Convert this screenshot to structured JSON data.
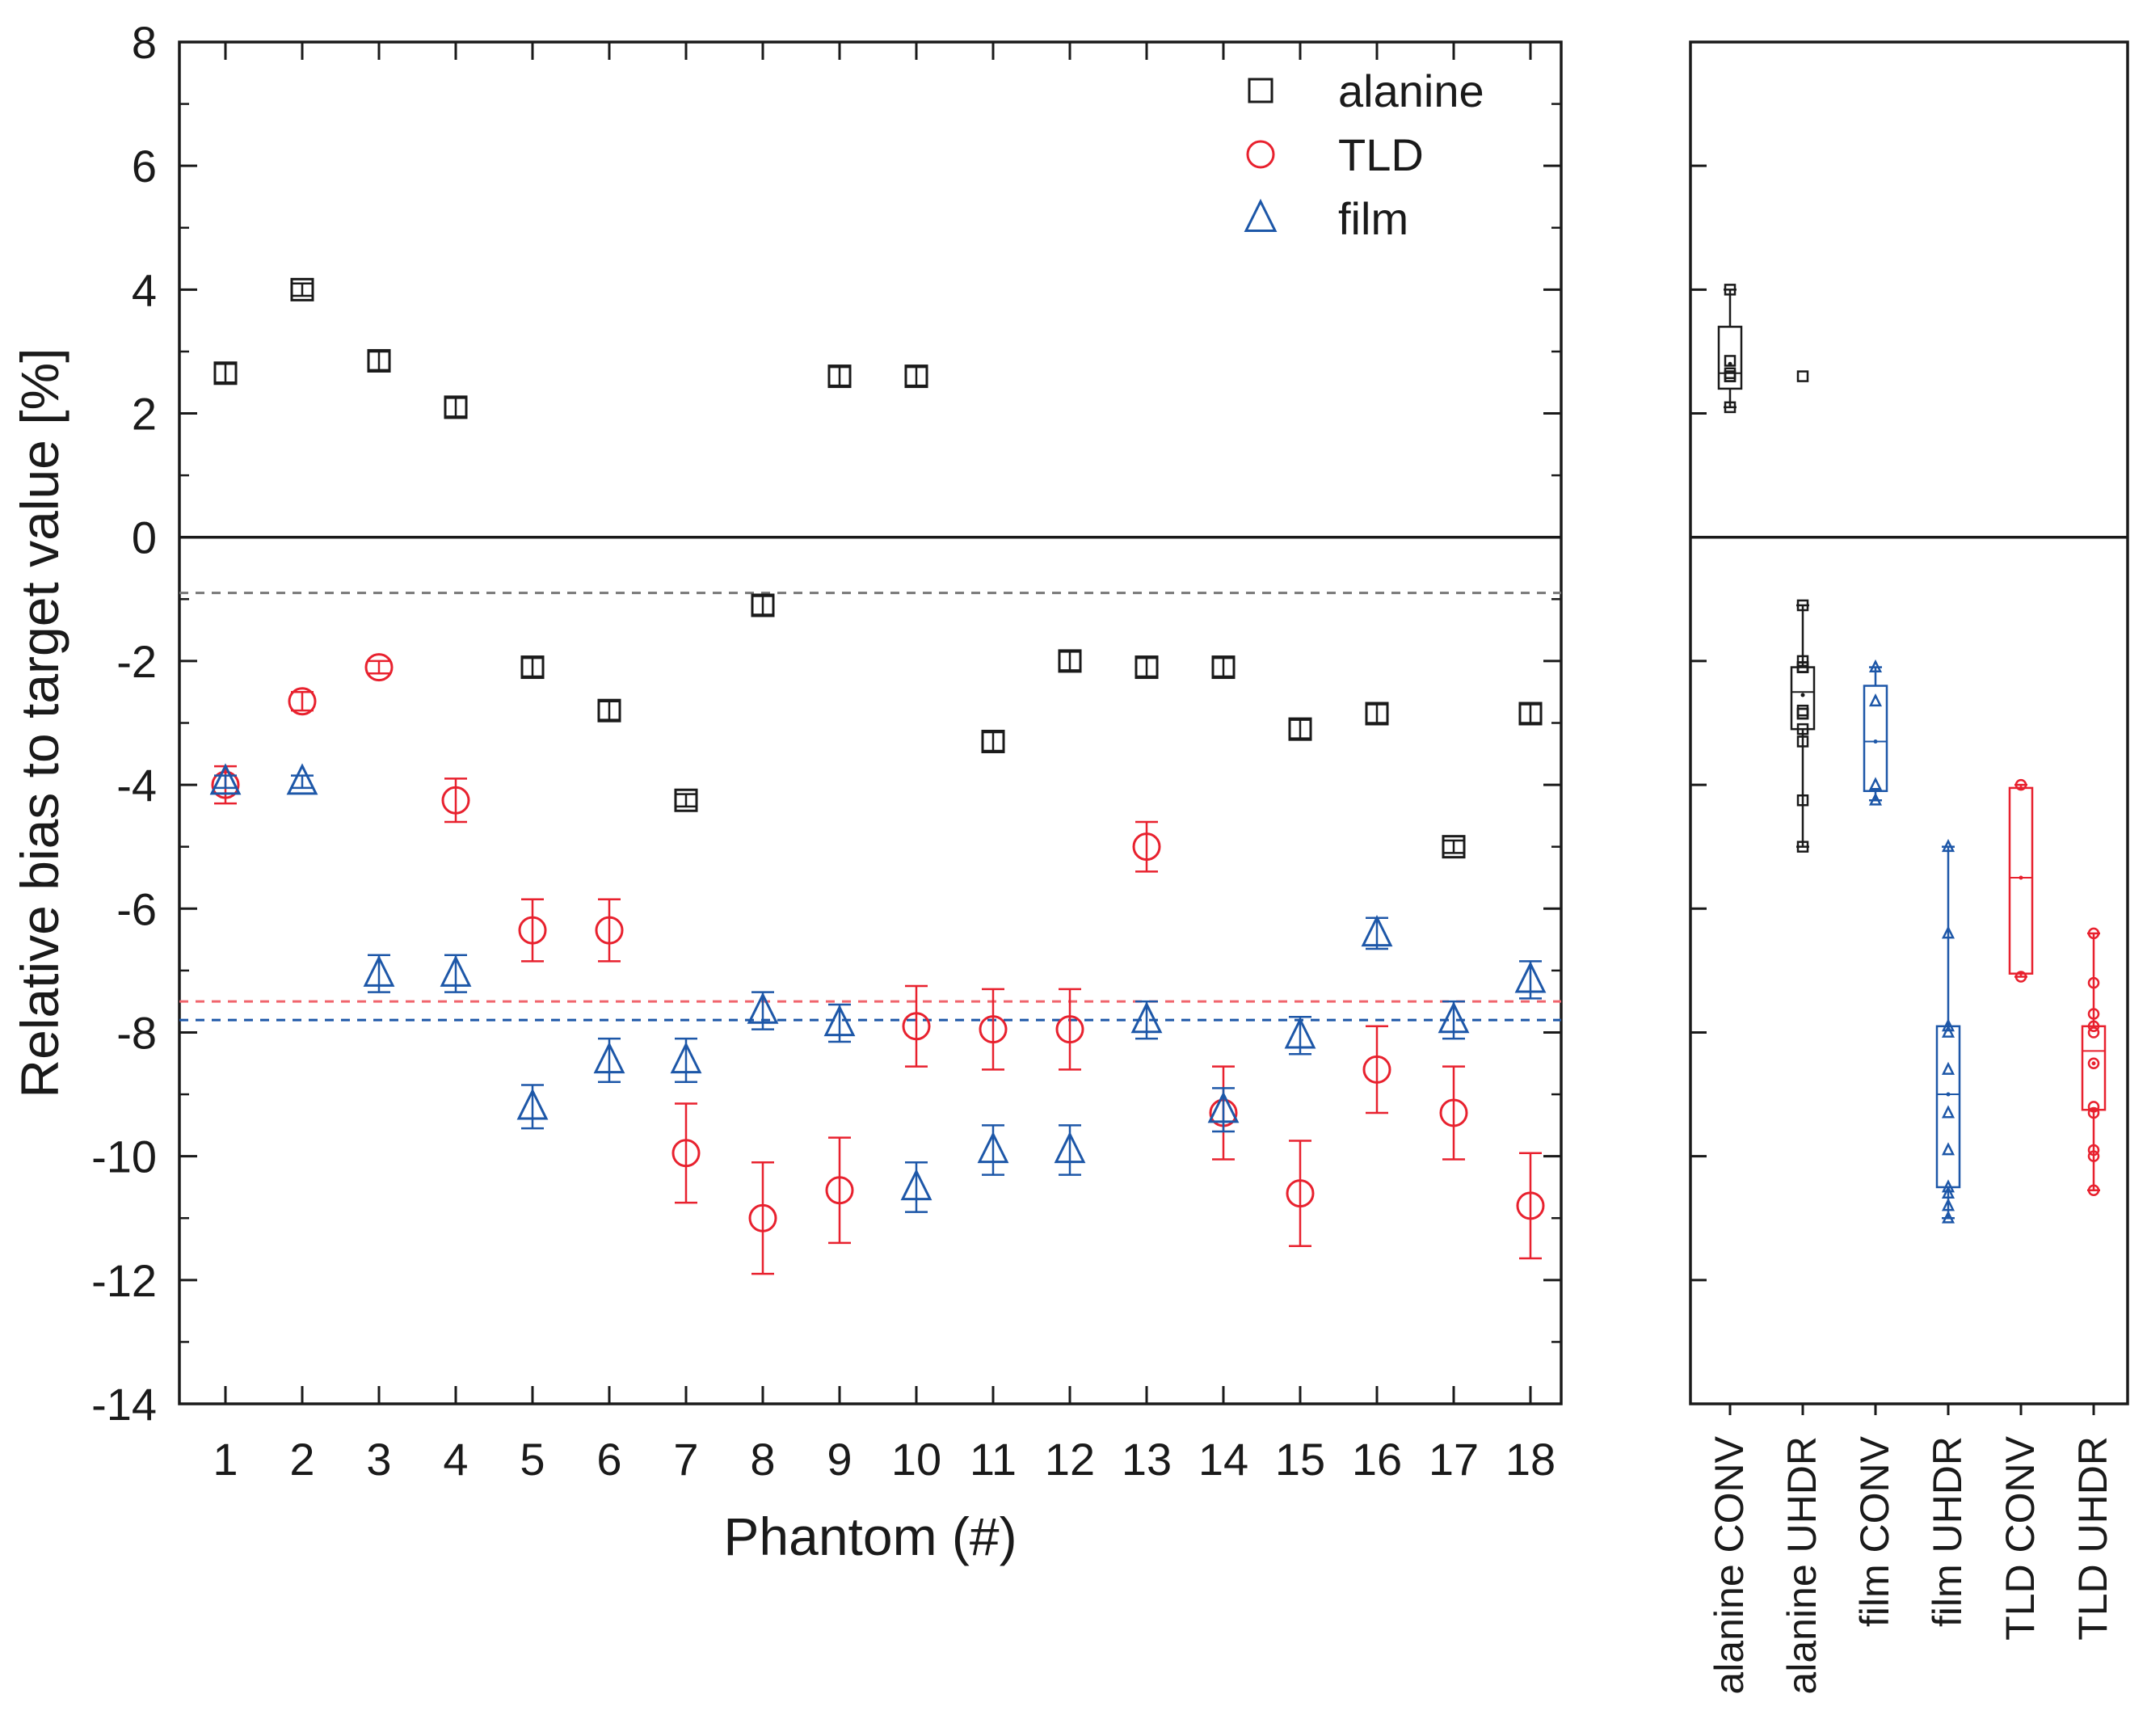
{
  "chart_data": [
    {
      "type": "scatter",
      "xlabel": "Phantom (#)",
      "ylabel": "Relative bias to target value [%]",
      "xlim": [
        0.4,
        18.4
      ],
      "ylim": [
        -14,
        8
      ],
      "x_ticks": [
        1,
        2,
        3,
        4,
        5,
        6,
        7,
        8,
        9,
        10,
        11,
        12,
        13,
        14,
        15,
        16,
        17,
        18
      ],
      "y_ticks": [
        8,
        6,
        4,
        2,
        0,
        -2,
        -4,
        -6,
        -8,
        -10,
        -12,
        -14
      ],
      "zero_line": 0,
      "legend_position": "top-right",
      "series": [
        {
          "name": "alanine",
          "marker": "square",
          "color": "#1a1a1a",
          "x": [
            1,
            2,
            3,
            4,
            5,
            6,
            7,
            8,
            9,
            10,
            11,
            12,
            13,
            14,
            15,
            16,
            17,
            18
          ],
          "y": [
            2.65,
            4.0,
            2.85,
            2.1,
            -2.1,
            -2.8,
            -4.25,
            -1.1,
            2.6,
            2.6,
            -3.3,
            -2.0,
            -2.1,
            -2.1,
            -3.1,
            -2.85,
            -5.0,
            -2.85
          ],
          "err": [
            0.15,
            0.1,
            0.15,
            0.15,
            0.15,
            0.15,
            0.1,
            0.15,
            0.15,
            0.15,
            0.15,
            0.15,
            0.15,
            0.15,
            0.15,
            0.15,
            0.1,
            0.15
          ]
        },
        {
          "name": "TLD",
          "marker": "circle",
          "color": "#e8212e",
          "x": [
            1,
            2,
            3,
            4,
            5,
            6,
            7,
            8,
            9,
            10,
            11,
            12,
            13,
            14,
            15,
            16,
            17,
            18
          ],
          "y": [
            -4.0,
            -2.65,
            -2.1,
            -4.25,
            -6.35,
            -6.35,
            -9.95,
            -11.0,
            -10.55,
            -7.9,
            -7.95,
            -7.95,
            -5.0,
            -9.3,
            -10.6,
            -8.6,
            -9.3,
            -10.8
          ],
          "err": [
            0.3,
            0.15,
            0.1,
            0.35,
            0.5,
            0.5,
            0.8,
            0.9,
            0.85,
            0.65,
            0.65,
            0.65,
            0.4,
            0.75,
            0.85,
            0.7,
            0.75,
            0.85
          ]
        },
        {
          "name": "film",
          "marker": "triangle",
          "color": "#1d57a8",
          "x": [
            1,
            2,
            3,
            4,
            5,
            6,
            7,
            8,
            9,
            10,
            11,
            12,
            13,
            14,
            15,
            16,
            17,
            18
          ],
          "y": [
            -3.95,
            -3.95,
            -7.05,
            -7.05,
            -9.2,
            -8.45,
            -8.45,
            -7.65,
            -7.85,
            -10.5,
            -9.9,
            -9.9,
            -7.8,
            -9.25,
            -8.05,
            -6.4,
            -7.8,
            -7.15
          ],
          "err": [
            0.1,
            0.1,
            0.3,
            0.3,
            0.35,
            0.35,
            0.35,
            0.3,
            0.3,
            0.4,
            0.4,
            0.4,
            0.3,
            0.35,
            0.3,
            0.25,
            0.3,
            0.3
          ]
        }
      ],
      "reference_lines": [
        {
          "series": "alanine",
          "y": -0.9,
          "style": "dashed",
          "color": "#777777"
        },
        {
          "series": "TLD",
          "y": -7.5,
          "style": "dashed",
          "color": "#f0646c"
        },
        {
          "series": "film",
          "y": -7.8,
          "style": "dashed",
          "color": "#1d57a8"
        }
      ]
    },
    {
      "type": "box",
      "ylim": [
        -14,
        8
      ],
      "zero_line": 0,
      "categories": [
        "alanine CONV",
        "alanine UHDR",
        "film CONV",
        "film UHDR",
        "TLD CONV",
        "TLD UHDR"
      ],
      "boxes": [
        {
          "category": "alanine CONV",
          "marker": "square",
          "color": "#1a1a1a",
          "whisker_low": 2.1,
          "q1": 2.4,
          "median": 2.65,
          "mean": 2.8,
          "q3": 3.4,
          "whisker_high": 4.0,
          "points": [
            2.1,
            2.6,
            2.6,
            2.65,
            2.85,
            4.0
          ]
        },
        {
          "category": "alanine UHDR",
          "marker": "square",
          "color": "#1a1a1a",
          "whisker_low": -5.0,
          "q1": -3.1,
          "median": -2.5,
          "mean": -2.55,
          "q3": -2.1,
          "whisker_high": -1.1,
          "points": [
            -1.1,
            -2.0,
            -2.1,
            -2.1,
            -2.1,
            -2.8,
            -2.85,
            -2.85,
            -3.1,
            -3.3,
            -4.25,
            -5.0
          ],
          "extra_points": [
            2.6
          ]
        },
        {
          "category": "film CONV",
          "marker": "triangle",
          "color": "#1d57a8",
          "whisker_low": -4.25,
          "q1": -4.1,
          "median": -3.3,
          "mean": -3.3,
          "q3": -2.4,
          "whisker_high": -2.1,
          "points": [
            -2.1,
            -2.65,
            -4.0,
            -4.25
          ]
        },
        {
          "category": "film UHDR",
          "marker": "triangle",
          "color": "#1d57a8",
          "whisker_low": -11.0,
          "q1": -10.5,
          "median": -9.0,
          "mean": -9.0,
          "q3": -7.9,
          "whisker_high": -5.0,
          "points": [
            -5.0,
            -6.4,
            -7.9,
            -8.0,
            -8.6,
            -9.3,
            -9.9,
            -10.5,
            -10.6,
            -10.8,
            -11.0
          ]
        },
        {
          "category": "TLD CONV",
          "marker": "circle",
          "color": "#e8212e",
          "whisker_low": -7.1,
          "q1": -7.05,
          "median": -5.5,
          "mean": -5.5,
          "q3": -4.05,
          "whisker_high": -4.0,
          "points": [
            -4.0,
            -7.1
          ]
        },
        {
          "category": "TLD UHDR",
          "marker": "circle",
          "color": "#e8212e",
          "whisker_low": -10.55,
          "q1": -9.25,
          "median": -8.3,
          "mean": -8.5,
          "q3": -7.9,
          "whisker_high": -6.4,
          "points": [
            -6.4,
            -7.2,
            -7.7,
            -7.9,
            -8.0,
            -8.5,
            -9.2,
            -9.3,
            -9.9,
            -10.0,
            -10.55
          ]
        }
      ]
    }
  ]
}
